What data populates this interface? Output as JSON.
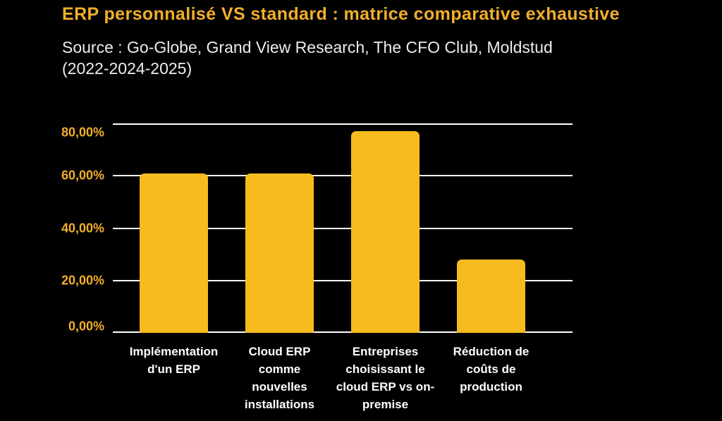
{
  "page": {
    "title": "ERP personnalisé VS standard : matrice comparative exhaustive",
    "subtitle": "Source : Go-Globe, Grand View Research, The CFO Club, Moldstud\n(2022-2024-2025)"
  },
  "colors": {
    "background": "#000000",
    "title": "#f2af2b",
    "subtitle": "#ededed",
    "bar": "#f6bb1e",
    "tick_label": "#f0ac20",
    "gridline": "#ffffff",
    "category_label": "#ffffff"
  },
  "chart_data": {
    "type": "bar",
    "title": "ERP personnalisé VS standard : matrice comparative exhaustive",
    "subtitle": "Source : Go-Globe, Grand View Research, The CFO Club, Moldstud (2022-2024-2025)",
    "categories": [
      "Implémentation d'un ERP",
      "Cloud ERP comme nouvelles installations",
      "Entreprises choisissant le cloud ERP vs on-premise",
      "Réduction de coûts de production"
    ],
    "categories_display": [
      "Implémentation\nd'un ERP",
      "Cloud ERP\ncomme\nnouvelles\ninstallations",
      "Entreprises\nchoisissant le\ncloud ERP vs on-\npremise",
      "Réduction de\ncoûts de\nproduction"
    ],
    "values": [
      61,
      61,
      77,
      28
    ],
    "unit": "%",
    "xlabel": "",
    "ylabel": "",
    "ylim": [
      0,
      80
    ],
    "yticks": [
      {
        "value": 80,
        "label": "80,00%"
      },
      {
        "value": 60,
        "label": "60,00%"
      },
      {
        "value": 40,
        "label": "40,00%"
      },
      {
        "value": 20,
        "label": "20,00%"
      },
      {
        "value": 0,
        "label": "0,00%"
      }
    ],
    "grid": "horizontal",
    "legend": "none"
  }
}
